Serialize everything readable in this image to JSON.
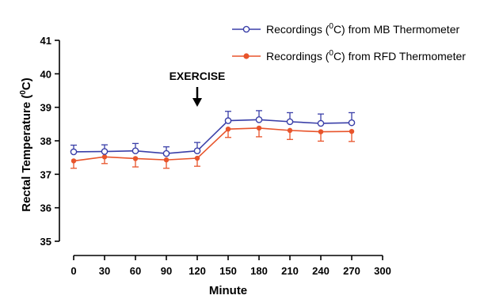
{
  "chart_data": {
    "type": "line",
    "xlabel": "Minute",
    "ylabel_main": "Rectal Temperature (",
    "ylabel_sup": "0",
    "ylabel_tail": "C)",
    "x_ticks": [
      0,
      30,
      60,
      90,
      120,
      150,
      180,
      210,
      240,
      270,
      300
    ],
    "y_ticks": [
      35,
      36,
      37,
      38,
      39,
      40,
      41
    ],
    "xlim": [
      0,
      300
    ],
    "ylim": [
      35,
      41
    ],
    "x": [
      0,
      30,
      60,
      90,
      120,
      150,
      180,
      210,
      240,
      270
    ],
    "series": [
      {
        "name_pre": "Recordings (",
        "name_sup": "0",
        "name_post": "C) from MB Thermometer",
        "color": "#3a3fa8",
        "marker": "open-circle",
        "values": [
          37.67,
          37.68,
          37.7,
          37.62,
          37.7,
          38.6,
          38.63,
          38.57,
          38.52,
          38.54
        ],
        "errors": [
          0.2,
          0.2,
          0.22,
          0.2,
          0.25,
          0.28,
          0.27,
          0.27,
          0.28,
          0.3
        ]
      },
      {
        "name_pre": "Recordings (",
        "name_sup": "0",
        "name_post": "C) from RFD Thermometer",
        "color": "#e8542b",
        "marker": "filled-circle",
        "values": [
          37.4,
          37.52,
          37.47,
          37.43,
          37.48,
          38.35,
          38.38,
          38.31,
          38.27,
          38.28
        ],
        "errors": [
          0.22,
          0.2,
          0.25,
          0.25,
          0.24,
          0.25,
          0.26,
          0.27,
          0.28,
          0.3
        ]
      }
    ],
    "annotation": {
      "text": "EXERCISE",
      "x": 120
    },
    "grid": false,
    "legend_position": "top-right"
  }
}
